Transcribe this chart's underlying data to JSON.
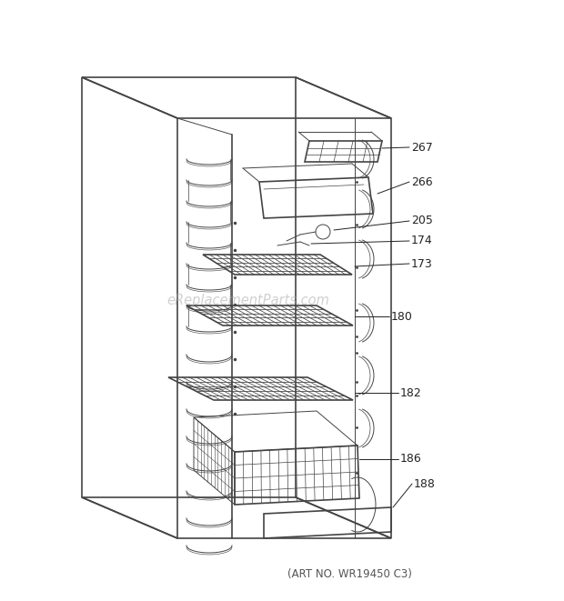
{
  "art_no_text": "(ART NO. WR19450 C3)",
  "watermark": "eReplacementParts.com",
  "background_color": "#ffffff",
  "line_color": "#444444",
  "label_color": "#333333",
  "fig_width": 6.2,
  "fig_height": 6.61,
  "dpi": 100
}
